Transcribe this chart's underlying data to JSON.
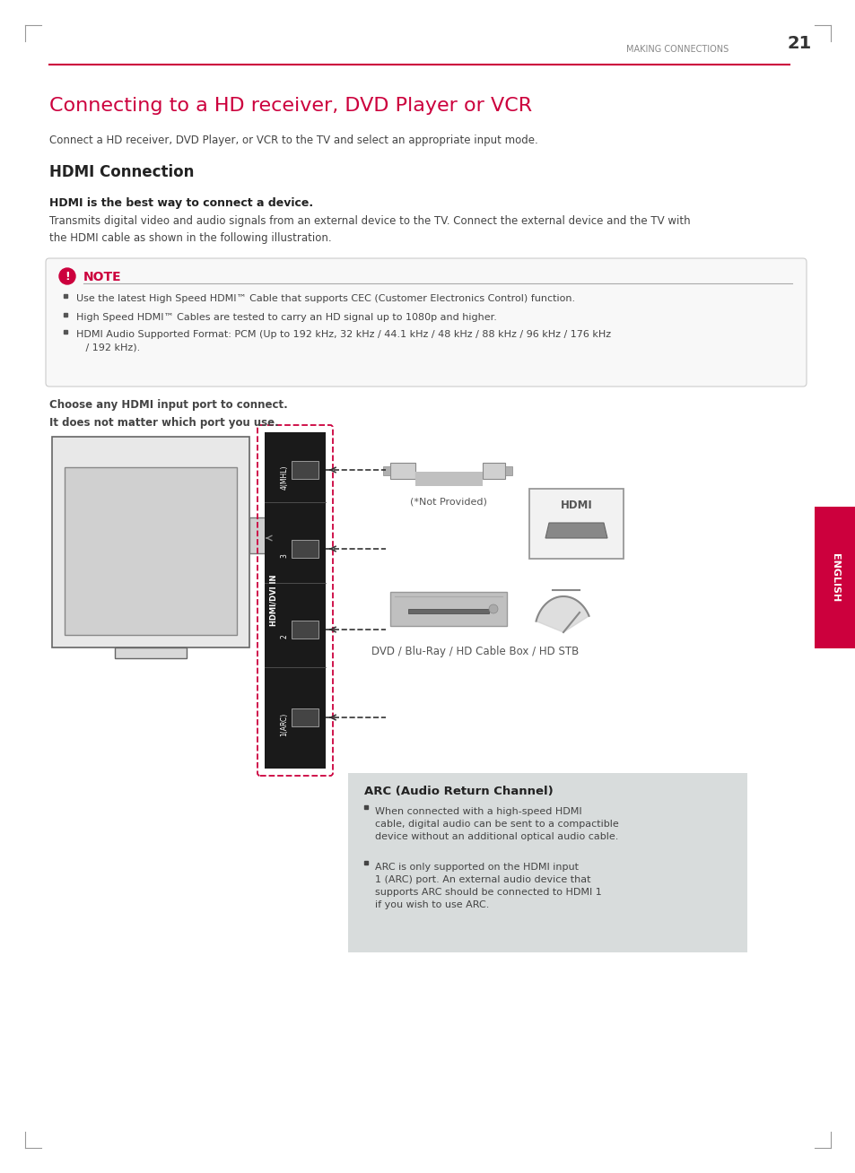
{
  "page_header_text": "MAKING CONNECTIONS",
  "page_number": "21",
  "title": "Connecting to a HD receiver, DVD Player or VCR",
  "subtitle": "Connect a HD receiver, DVD Player, or VCR to the TV and select an appropriate input mode.",
  "section1_title": "HDMI Connection",
  "bold_line": "HDMI is the best way to connect a device.",
  "body_text": "Transmits digital video and audio signals from an external device to the TV. Connect the external device and the TV with\nthe HDMI cable as shown in the following illustration.",
  "note_title": "NOTE",
  "note_bullets": [
    "Use the latest High Speed HDMI™ Cable that supports CEC (Customer Electronics Control) function.",
    "High Speed HDMI™ Cables are tested to carry an HD signal up to 1080p and higher.",
    "HDMI Audio Supported Format: PCM (Up to 192 kHz, 32 kHz / 44.1 kHz / 48 kHz / 88 kHz / 96 kHz / 176 kHz\n   / 192 kHz)."
  ],
  "choose_text": "Choose any HDMI input port to connect.\nIt does not matter which port you use.",
  "not_provided_text": "(*Not Provided)",
  "dvd_label": "DVD / Blu-Ray / HD Cable Box / HD STB",
  "hdmi_label": "HDMI",
  "hdmi_ports": [
    "4(MHL)",
    "3",
    "2",
    "1(ARC)"
  ],
  "hdmi_panel_label": "HDMI/DVI IN",
  "arc_box_title": "ARC (Audio Return Channel)",
  "arc_bullet1_line1": "When connected with a high-speed HDMI",
  "arc_bullet1_line2": "cable, digital audio can be sent to a compactible",
  "arc_bullet1_line3": "device without an additional optical audio cable.",
  "arc_bullet2_line1": "ARC is only supported on the HDMI input",
  "arc_bullet2_line2": "1 (ARC) port. An external audio device that",
  "arc_bullet2_line3": "supports ARC should be connected to HDMI 1",
  "arc_bullet2_line4": "if you wish to use ARC.",
  "english_tab_text": "ENGLISH",
  "accent_color": "#cc003d",
  "dark_color": "#333333",
  "light_gray": "#aaaaaa",
  "bg_color": "#ffffff",
  "note_bg": "#f8f8f8",
  "arc_box_bg": "#d8dcdc",
  "border_color": "#cccccc"
}
